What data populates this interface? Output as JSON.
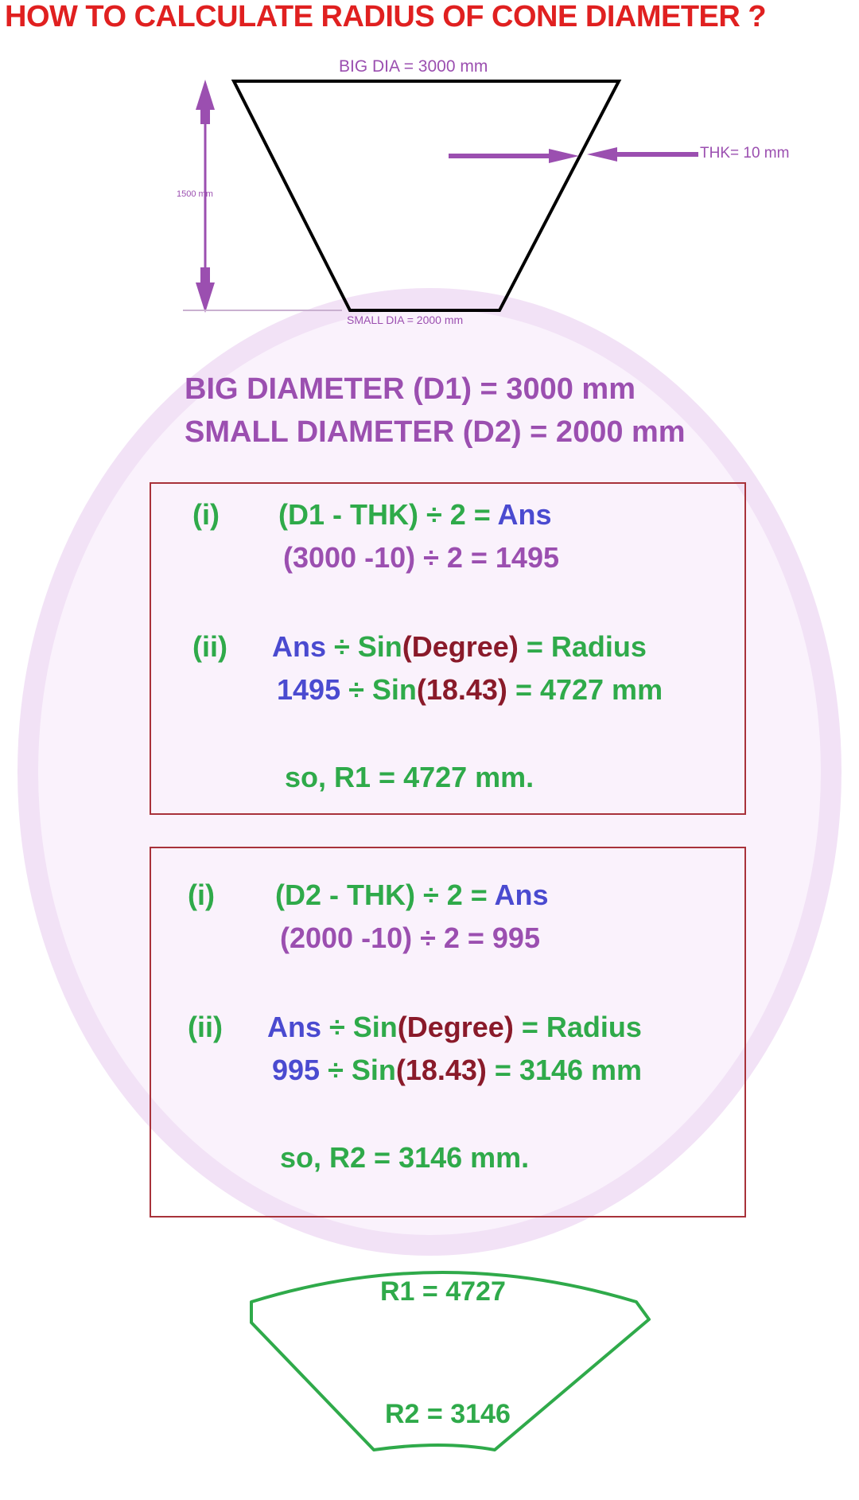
{
  "title": "HOW TO CALCULATE RADIUS OF CONE DIAMETER ?",
  "cone": {
    "big_dia_label": "BIG DIA = 3000 mm",
    "small_dia_label": "SMALL DIA = 2000 mm",
    "height_label": "1500 mm",
    "thk_label": "THK= 10 mm"
  },
  "diameters": {
    "big": "BIG DIAMETER (D1) = 3000 mm",
    "small": "SMALL DIAMETER (D2) = 2000 mm"
  },
  "box1": {
    "step1_marker": "(i)",
    "step1_formula_a": "(D1 - THK) ÷ 2 = ",
    "step1_formula_b": "Ans",
    "step1_calc": "(3000 -10) ÷ 2 = 1495",
    "step2_marker": "(ii)",
    "step2_f_a": "Ans",
    "step2_f_b": " ÷ Sin",
    "step2_f_c": "(Degree)",
    "step2_f_d": " = Radius",
    "step2_c_a": "1495",
    "step2_c_b": " ÷ Sin",
    "step2_c_c": "(18.43)",
    "step2_c_d": " = 4727 mm",
    "result": "so,   R1 = 4727 mm."
  },
  "box2": {
    "step1_marker": "(i)",
    "step1_formula_a": "(D2 - THK) ÷ 2 = ",
    "step1_formula_b": "Ans",
    "step1_calc": "(2000 -10) ÷ 2 = 995",
    "step2_marker": "(ii)",
    "step2_f_a": "Ans",
    "step2_f_b": " ÷ Sin",
    "step2_f_c": "(Degree)",
    "step2_f_d": " = Radius",
    "step2_c_a": "995",
    "step2_c_b": " ÷ Sin",
    "step2_c_c": "(18.43)",
    "step2_c_d": " = 3146 mm",
    "result": "so,   R2 = 3146 mm."
  },
  "flat_pattern": {
    "r1_label": "R1 = 4727",
    "r2_label": "R2 = 3146"
  },
  "colors": {
    "title_red": "#e02020",
    "purple": "#9b4fb0",
    "green": "#2faa4a",
    "blue": "#4a4ad0",
    "maroon": "#8a1a2a",
    "box_border": "#a8323a"
  }
}
